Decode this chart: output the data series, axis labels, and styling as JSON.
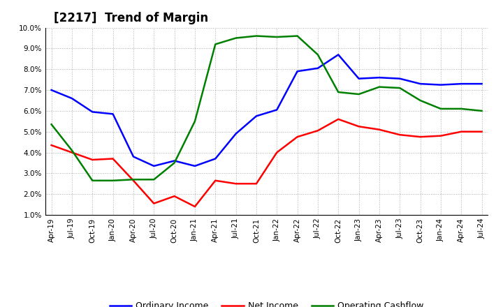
{
  "title": "[2217]  Trend of Margin",
  "x_labels": [
    "Apr-19",
    "Jul-19",
    "Oct-19",
    "Jan-20",
    "Apr-20",
    "Jul-20",
    "Oct-20",
    "Jan-21",
    "Apr-21",
    "Jul-21",
    "Oct-21",
    "Jan-22",
    "Apr-22",
    "Jul-22",
    "Oct-22",
    "Jan-23",
    "Apr-23",
    "Jul-23",
    "Oct-23",
    "Jan-24",
    "Apr-24",
    "Jul-24"
  ],
  "ordinary_income": [
    7.0,
    6.6,
    5.95,
    5.85,
    3.8,
    3.35,
    3.6,
    3.35,
    3.7,
    4.9,
    5.75,
    6.05,
    7.9,
    8.05,
    8.7,
    7.55,
    7.6,
    7.55,
    7.3,
    7.25,
    7.3,
    7.3
  ],
  "net_income": [
    4.35,
    4.0,
    3.65,
    3.7,
    2.65,
    1.55,
    1.9,
    1.4,
    2.65,
    2.5,
    2.5,
    4.0,
    4.75,
    5.05,
    5.6,
    5.25,
    5.1,
    4.85,
    4.75,
    4.8,
    5.0,
    5.0
  ],
  "operating_cashflow": [
    5.35,
    4.1,
    2.65,
    2.65,
    2.7,
    2.7,
    3.5,
    5.5,
    9.2,
    9.5,
    9.6,
    9.55,
    9.6,
    8.7,
    6.9,
    6.8,
    7.15,
    7.1,
    6.5,
    6.1,
    6.1,
    6.0
  ],
  "ylim": [
    1.0,
    10.0
  ],
  "yticks": [
    1.0,
    2.0,
    3.0,
    4.0,
    5.0,
    6.0,
    7.0,
    8.0,
    9.0,
    10.0
  ],
  "color_ordinary": "#0000FF",
  "color_net": "#FF0000",
  "color_cashflow": "#008000",
  "background_color": "#ffffff",
  "grid_color": "#999999",
  "legend_labels": [
    "Ordinary Income",
    "Net Income",
    "Operating Cashflow"
  ],
  "title_fontsize": 12,
  "tick_fontsize": 7.5
}
